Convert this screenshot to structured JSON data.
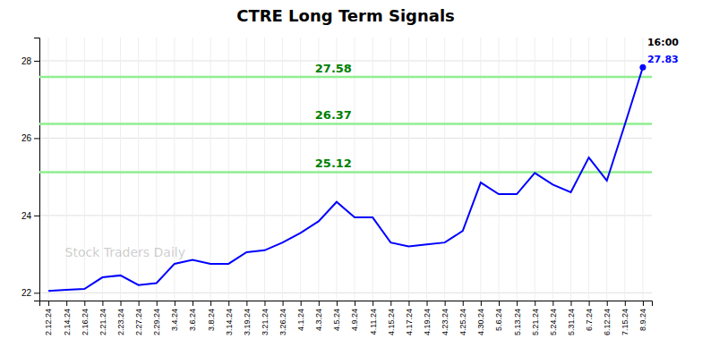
{
  "chart_data": {
    "type": "line",
    "title": "CTRE Long Term Signals",
    "categories": [
      "2.12.24",
      "2.14.24",
      "2.16.24",
      "2.21.24",
      "2.23.24",
      "2.27.24",
      "2.29.24",
      "3.4.24",
      "3.6.24",
      "3.8.24",
      "3.14.24",
      "3.19.24",
      "3.21.24",
      "3.26.24",
      "4.1.24",
      "4.3.24",
      "4.5.24",
      "4.9.24",
      "4.11.24",
      "4.15.24",
      "4.17.24",
      "4.19.24",
      "4.23.24",
      "4.25.24",
      "4.30.24",
      "5.6.24",
      "5.13.24",
      "5.21.24",
      "5.24.24",
      "5.31.24",
      "6.7.24",
      "6.12.24",
      "7.15.24",
      "8.9.24"
    ],
    "values": [
      22.05,
      22.08,
      22.1,
      22.4,
      22.45,
      22.2,
      22.25,
      22.75,
      22.85,
      22.75,
      22.75,
      23.05,
      23.1,
      23.3,
      23.55,
      23.85,
      24.35,
      23.95,
      23.95,
      23.3,
      23.2,
      23.25,
      23.3,
      23.6,
      24.85,
      24.55,
      24.55,
      25.1,
      24.8,
      24.6,
      25.5,
      24.9,
      26.35,
      27.83
    ],
    "color": "blue",
    "ylim": [
      21.8,
      28.6
    ],
    "yticks": [
      22,
      24,
      26,
      28
    ],
    "grid": true,
    "hlines": [
      {
        "y": 27.58,
        "label": "27.58",
        "color": "#90EE90"
      },
      {
        "y": 26.37,
        "label": "26.37",
        "color": "#90EE90"
      },
      {
        "y": 25.12,
        "label": "25.12",
        "color": "#90EE90"
      }
    ],
    "watermark": "Stock Traders Daily",
    "annotations": [
      {
        "text": "16:00",
        "color": "black"
      },
      {
        "text": "27.83",
        "color": "blue"
      }
    ]
  }
}
